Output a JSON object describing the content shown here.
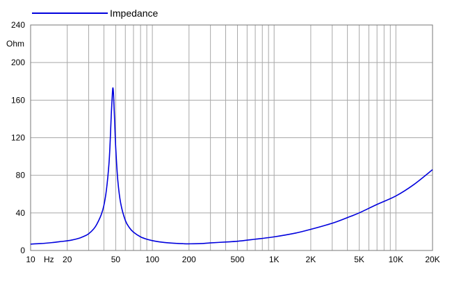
{
  "chart_data": {
    "type": "line",
    "title": "",
    "xlabel": "Hz",
    "ylabel": "Ohm",
    "x_scale": "log",
    "xlim": [
      10,
      20000
    ],
    "ylim": [
      0,
      240
    ],
    "grid": true,
    "legend_position": "top-left",
    "x_tick_labels": [
      {
        "value": 10,
        "label": "10"
      },
      {
        "value": 20,
        "label": "20"
      },
      {
        "value": 50,
        "label": "50"
      },
      {
        "value": 100,
        "label": "100"
      },
      {
        "value": 200,
        "label": "200"
      },
      {
        "value": 500,
        "label": "500"
      },
      {
        "value": 1000,
        "label": "1K"
      },
      {
        "value": 2000,
        "label": "2K"
      },
      {
        "value": 5000,
        "label": "5K"
      },
      {
        "value": 10000,
        "label": "10K"
      },
      {
        "value": 20000,
        "label": "20K"
      }
    ],
    "y_tick_labels": [
      {
        "value": 0,
        "label": "0"
      },
      {
        "value": 40,
        "label": "40"
      },
      {
        "value": 80,
        "label": "80"
      },
      {
        "value": 120,
        "label": "120"
      },
      {
        "value": 160,
        "label": "160"
      },
      {
        "value": 200,
        "label": "200"
      },
      {
        "value": 240,
        "label": "240"
      }
    ],
    "series": [
      {
        "name": "Impedance",
        "color": "#0000dd",
        "points": [
          [
            10,
            6.8
          ],
          [
            12,
            7.3
          ],
          [
            15,
            8.4
          ],
          [
            18,
            9.6
          ],
          [
            20,
            10.3
          ],
          [
            22,
            11.2
          ],
          [
            25,
            13.0
          ],
          [
            28,
            15.6
          ],
          [
            30,
            17.8
          ],
          [
            33,
            23
          ],
          [
            35,
            28
          ],
          [
            38,
            38
          ],
          [
            40,
            48
          ],
          [
            42,
            65
          ],
          [
            44,
            92
          ],
          [
            45,
            115
          ],
          [
            46,
            145
          ],
          [
            47,
            168
          ],
          [
            47.5,
            173
          ],
          [
            48,
            166
          ],
          [
            49,
            138
          ],
          [
            50,
            110
          ],
          [
            52,
            75
          ],
          [
            55,
            50
          ],
          [
            60,
            32
          ],
          [
            65,
            24
          ],
          [
            70,
            19.5
          ],
          [
            80,
            14.5
          ],
          [
            90,
            12
          ],
          [
            100,
            10.5
          ],
          [
            120,
            8.8
          ],
          [
            150,
            7.7
          ],
          [
            180,
            7.2
          ],
          [
            200,
            7.1
          ],
          [
            250,
            7.3
          ],
          [
            300,
            8.1
          ],
          [
            400,
            9.0
          ],
          [
            500,
            9.8
          ],
          [
            700,
            12
          ],
          [
            1000,
            14.5
          ],
          [
            1500,
            18.5
          ],
          [
            2000,
            22.5
          ],
          [
            3000,
            29
          ],
          [
            4000,
            35
          ],
          [
            5000,
            40
          ],
          [
            7000,
            49
          ],
          [
            10000,
            58
          ],
          [
            14000,
            70
          ],
          [
            20000,
            86
          ]
        ]
      }
    ]
  }
}
